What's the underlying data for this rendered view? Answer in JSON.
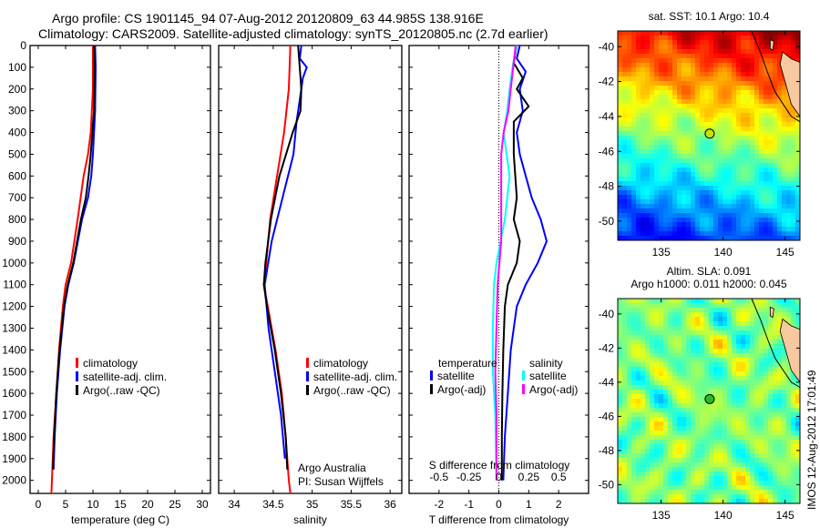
{
  "title": {
    "line1": "Argo profile: CS 1901145_94 07-Aug-2012 20120809_63 44.985S 138.916E",
    "line2": "Climatology: CARS2009. Satellite-adjusted climatology: synTS_20120805.nc (2.7d earlier)"
  },
  "timestamp": "IMOS 12-Aug-2012 17:01:49",
  "chart_data": [
    {
      "id": "temperature",
      "type": "line",
      "xlabel": "temperature (deg C)",
      "xlim": [
        -1.5,
        31.5
      ],
      "xticks": [
        0,
        5,
        10,
        15,
        20,
        25,
        30
      ],
      "ylim": [
        0,
        2060
      ],
      "yticks": [
        0,
        100,
        200,
        300,
        400,
        500,
        600,
        700,
        800,
        900,
        1000,
        1100,
        1200,
        1300,
        1400,
        1500,
        1600,
        1700,
        1800,
        1900,
        2000
      ],
      "legend": [
        "climatology",
        "satellite-adj. clim.",
        "Argo(..raw -QC)"
      ],
      "series": [
        {
          "name": "climatology",
          "color": "#ff0000",
          "depth": [
            0,
            200,
            400,
            500,
            600,
            800,
            1000,
            1100,
            1200,
            1400,
            1600,
            1800,
            2000,
            2060
          ],
          "values": [
            10.0,
            10.0,
            9.6,
            9.1,
            8.3,
            7.2,
            6.0,
            5.0,
            4.5,
            3.8,
            3.3,
            2.8,
            2.5,
            2.4
          ]
        },
        {
          "name": "satellite-adj. clim.",
          "color": "#0000ff",
          "depth": [
            0,
            100,
            300,
            500,
            600,
            700,
            800,
            1000,
            1100,
            1200,
            1400,
            1600,
            1800,
            1950
          ],
          "values": [
            10.4,
            10.5,
            10.4,
            10.0,
            9.7,
            9.1,
            8.0,
            6.5,
            5.5,
            4.8,
            4.0,
            3.4,
            3.0,
            2.8
          ]
        },
        {
          "name": "Argo(..raw -QC)",
          "color": "#000000",
          "depth": [
            0,
            100,
            300,
            500,
            600,
            700,
            800,
            1000,
            1100,
            1200,
            1400,
            1600,
            1800,
            1950
          ],
          "values": [
            10.2,
            10.3,
            10.2,
            9.6,
            9.2,
            8.7,
            7.8,
            6.4,
            5.4,
            4.7,
            3.9,
            3.3,
            2.9,
            2.7
          ]
        }
      ]
    },
    {
      "id": "salinity",
      "type": "line",
      "xlabel": "salinity",
      "xlim": [
        33.8,
        36.15
      ],
      "xticks": [
        34,
        34.5,
        35,
        35.5,
        36
      ],
      "xticklabels": [
        "34",
        "34.5",
        "35",
        "35.5",
        "36"
      ],
      "legend": [
        "climatology",
        "satellite-adj. clim.",
        "Argo(..raw -QC)"
      ],
      "annotation": [
        "Argo Australia",
        "PI: Susan Wijffels"
      ],
      "series": [
        {
          "name": "climatology",
          "color": "#ff0000",
          "depth": [
            0,
            200,
            400,
            600,
            800,
            1000,
            1100,
            1200,
            1400,
            1600,
            1800,
            2000,
            2060
          ],
          "values": [
            34.72,
            34.7,
            34.64,
            34.55,
            34.46,
            34.41,
            34.38,
            34.43,
            34.53,
            34.61,
            34.66,
            34.7,
            34.72
          ]
        },
        {
          "name": "satellite-adj. clim.",
          "color": "#0000ff",
          "depth": [
            0,
            60,
            100,
            150,
            250,
            350,
            500,
            700,
            900,
            1100,
            1300,
            1500,
            1700,
            1900
          ],
          "values": [
            34.86,
            34.84,
            34.93,
            34.88,
            34.84,
            34.8,
            34.76,
            34.62,
            34.48,
            34.39,
            34.44,
            34.52,
            34.6,
            34.65
          ]
        },
        {
          "name": "Argo(..raw -QC)",
          "color": "#000000",
          "depth": [
            0,
            100,
            200,
            300,
            400,
            600,
            800,
            1000,
            1100,
            1200,
            1400,
            1600,
            1800,
            1950
          ],
          "values": [
            34.82,
            34.84,
            34.86,
            34.85,
            34.75,
            34.58,
            34.47,
            34.4,
            34.38,
            34.42,
            34.52,
            34.6,
            34.66,
            34.68
          ]
        }
      ]
    },
    {
      "id": "difference",
      "type": "line",
      "xlabel": "T difference from climatology",
      "xlim": [
        -3,
        3
      ],
      "xticks": [
        -2,
        -1,
        0,
        1,
        2
      ],
      "top_axis_label": "S difference from climatology",
      "top_ticks": [
        -0.5,
        -0.25,
        0,
        0.25,
        0.5
      ],
      "top_ticklabels": [
        "-0.5",
        "-0.25",
        "0",
        "0.25",
        "0.5"
      ],
      "legend_headers": [
        "temperature",
        "salinity"
      ],
      "legend": [
        "satellite",
        "Argo(-adj)",
        "satellite",
        "Argo(-adj)"
      ],
      "series": [
        {
          "name": "T satellite",
          "color": "#0000ff",
          "scale": "T",
          "depth": [
            0,
            60,
            120,
            200,
            300,
            400,
            500,
            600,
            700,
            800,
            900,
            1000,
            1100,
            1200,
            1400,
            1600,
            1800,
            2000
          ],
          "values": [
            0.7,
            0.6,
            0.9,
            0.7,
            0.8,
            0.6,
            0.7,
            0.9,
            1.1,
            1.4,
            1.6,
            1.3,
            0.9,
            0.6,
            0.4,
            0.3,
            0.2,
            0.15
          ]
        },
        {
          "name": "T Argo(-adj)",
          "color": "#000000",
          "scale": "T",
          "depth": [
            0,
            80,
            150,
            200,
            280,
            350,
            500,
            700,
            800,
            900,
            1000,
            1100,
            1200,
            1400,
            1600,
            1800,
            2000
          ],
          "values": [
            0.6,
            0.5,
            0.8,
            0.6,
            1.0,
            0.5,
            0.5,
            0.6,
            0.5,
            0.7,
            0.6,
            0.3,
            0.2,
            0.15,
            0.12,
            0.1,
            0.1
          ]
        },
        {
          "name": "S satellite",
          "color": "#00ffff",
          "scale": "S",
          "depth": [
            0,
            80,
            200,
            300,
            400,
            600,
            800,
            1000,
            1100,
            1300,
            1500,
            1700,
            2000
          ],
          "values": [
            0.15,
            0.12,
            0.09,
            0.07,
            0.04,
            0.09,
            0.05,
            -0.02,
            -0.04,
            -0.05,
            -0.05,
            -0.03,
            -0.02
          ]
        },
        {
          "name": "S Argo(-adj)",
          "color": "#ff00ff",
          "scale": "S",
          "depth": [
            0,
            100,
            200,
            300,
            400,
            500,
            700,
            900,
            1100,
            1300,
            1500,
            1700,
            2000
          ],
          "values": [
            0.14,
            0.12,
            0.1,
            0.08,
            0.04,
            0.02,
            0.02,
            0.02,
            -0.01,
            -0.02,
            -0.03,
            -0.02,
            -0.02
          ]
        }
      ]
    },
    {
      "id": "sst-map",
      "type": "heatmap",
      "title": "sat. SST: 10.1  Argo: 10.4",
      "xticks": [
        135,
        140,
        145
      ],
      "yticks": [
        -40,
        -42,
        -44,
        -46,
        -48,
        -50
      ],
      "xlim": [
        131.5,
        146.2
      ],
      "ylim": [
        -51.1,
        -39.1
      ],
      "argo_position": [
        138.916,
        -44.985
      ]
    },
    {
      "id": "sla-map",
      "type": "heatmap",
      "title": [
        "Altim. SLA: 0.091",
        "Argo h1000: 0.011 h2000: 0.045"
      ],
      "xticks": [
        135,
        140,
        145
      ],
      "yticks": [
        -40,
        -42,
        -44,
        -46,
        -48,
        -50
      ],
      "xlim": [
        131.5,
        146.2
      ],
      "ylim": [
        -51.1,
        -39.1
      ],
      "argo_position": [
        138.916,
        -44.985
      ]
    }
  ]
}
